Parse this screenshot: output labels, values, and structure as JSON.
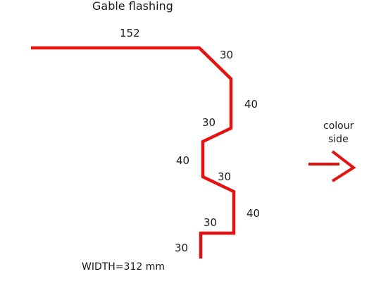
{
  "title": "Gable flashing",
  "flashing": {
    "color": "#e51212",
    "segments": [
      {
        "label": "152"
      },
      {
        "label": "30"
      },
      {
        "label": "40"
      },
      {
        "label": "30"
      },
      {
        "label": "40"
      },
      {
        "label": "30"
      },
      {
        "label": "40"
      },
      {
        "label": "30"
      },
      {
        "label": "30"
      }
    ]
  },
  "total_width": "WIDTH=312 mm",
  "colour_side": {
    "line1": "colour",
    "line2": "side",
    "arrow_icon": "arrow-right-icon"
  }
}
